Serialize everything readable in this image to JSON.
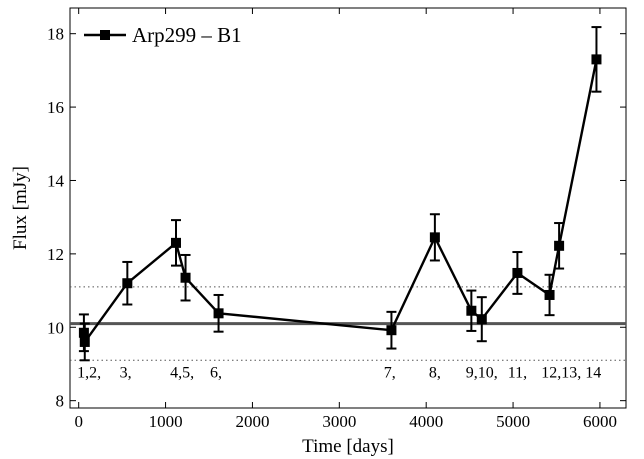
{
  "chart_data": {
    "type": "line",
    "title": "",
    "xlabel": "Time [days]",
    "ylabel": "Flux [mJy]",
    "xlim": [
      -100,
      6300
    ],
    "ylim": [
      7.8,
      18.7
    ],
    "xticks": [
      0,
      1000,
      2000,
      3000,
      4000,
      5000,
      6000
    ],
    "yticks": [
      8,
      10,
      12,
      14,
      16,
      18
    ],
    "grid": false,
    "legend_position": "top-left",
    "series": [
      {
        "name": "Arp299 – B1",
        "color": "#000000",
        "marker": "square",
        "points": [
          {
            "x": 60,
            "y": 9.85,
            "err": 0.5
          },
          {
            "x": 70,
            "y": 9.6,
            "err": 0.5
          },
          {
            "x": 560,
            "y": 11.2,
            "err": 0.58
          },
          {
            "x": 1120,
            "y": 12.3,
            "err": 0.62
          },
          {
            "x": 1230,
            "y": 11.35,
            "err": 0.62
          },
          {
            "x": 1610,
            "y": 10.38,
            "err": 0.5
          },
          {
            "x": 3600,
            "y": 9.92,
            "err": 0.5
          },
          {
            "x": 4100,
            "y": 12.45,
            "err": 0.63
          },
          {
            "x": 4520,
            "y": 10.45,
            "err": 0.55
          },
          {
            "x": 4640,
            "y": 10.22,
            "err": 0.6
          },
          {
            "x": 5050,
            "y": 11.48,
            "err": 0.57
          },
          {
            "x": 5420,
            "y": 10.88,
            "err": 0.55
          },
          {
            "x": 5530,
            "y": 12.22,
            "err": 0.62
          },
          {
            "x": 5960,
            "y": 17.3,
            "err": 0.88
          }
        ]
      }
    ],
    "reference_lines": [
      {
        "y": 10.1,
        "style": "solid",
        "color": "#555555"
      },
      {
        "y": 11.1,
        "style": "dotted",
        "color": "#555555"
      },
      {
        "y": 9.1,
        "style": "dotted",
        "color": "#555555"
      }
    ],
    "annotations": [
      {
        "text": "1,2,",
        "x": 120
      },
      {
        "text": "3,",
        "x": 540
      },
      {
        "text": "4,5,",
        "x": 1190
      },
      {
        "text": "6,",
        "x": 1580
      },
      {
        "text": "7,",
        "x": 3580
      },
      {
        "text": "8,",
        "x": 4100
      },
      {
        "text": "9,10,",
        "x": 4640
      },
      {
        "text": "11,",
        "x": 5050
      },
      {
        "text": "12,13, 14",
        "x": 5670
      }
    ],
    "annotation_y": 8.8
  }
}
